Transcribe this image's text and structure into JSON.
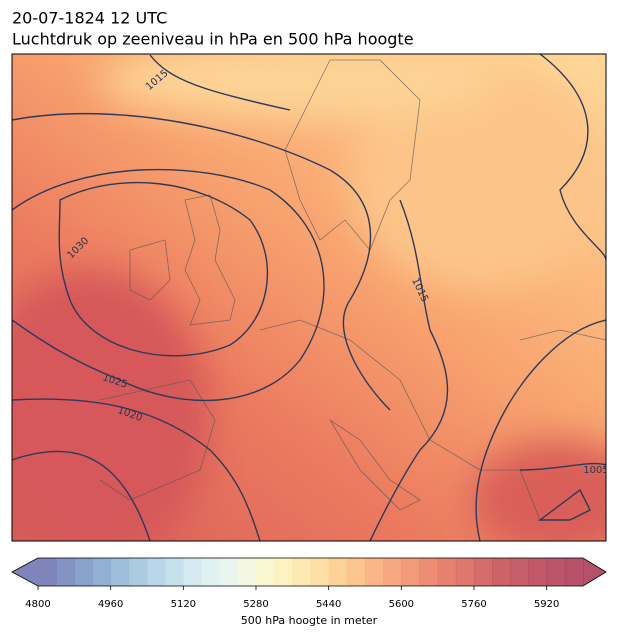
{
  "header": {
    "title": "20-07-1824 12 UTC",
    "subtitle": "Luchtdruk op zeeniveau in hPa en 500 hPa hoogte"
  },
  "map": {
    "contour_labels": [
      1015,
      1030,
      1015,
      1025,
      1020,
      1005
    ]
  },
  "colorbar": {
    "label": "500 hPa hoogte in meter",
    "lim": [
      4800,
      6000
    ],
    "ticks": [
      4800,
      4960,
      5120,
      5280,
      5440,
      5600,
      5760,
      5920
    ],
    "colors": [
      "#6870b0",
      "#6e80b9",
      "#7690c2",
      "#80a2cb",
      "#8db2d4",
      "#9cc2dc",
      "#accfe3",
      "#bcdbe9",
      "#cce5ee",
      "#dbeef0",
      "#e8f3ec",
      "#f2f6dc",
      "#f9f7c8",
      "#fdf1b6",
      "#fde6a5",
      "#fdd995",
      "#fcca87",
      "#fbba7b",
      "#f9a971",
      "#f69868",
      "#f18861",
      "#ea795b",
      "#e26b57",
      "#d85f54",
      "#cd5351",
      "#c2484f",
      "#bb424e",
      "#b63c4e",
      "#b0374f",
      "#a9324f"
    ]
  }
}
